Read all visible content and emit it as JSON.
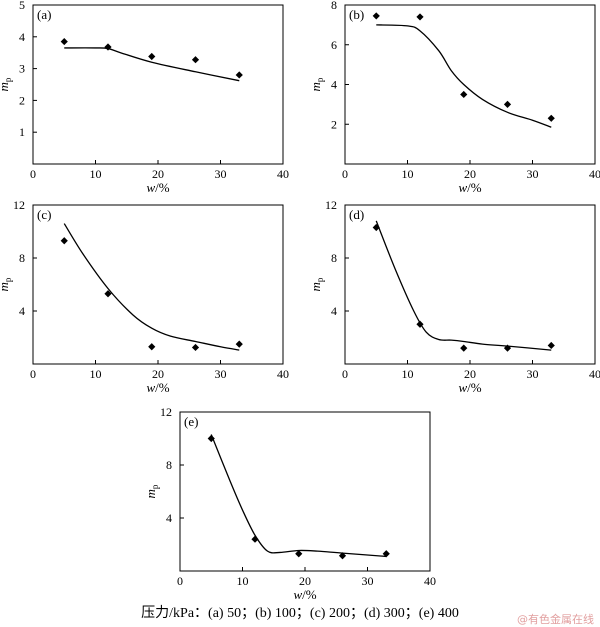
{
  "chart_data": [
    {
      "type": "scatter",
      "panel_label": "(a)",
      "xlabel": "w/%",
      "ylabel": "m_p",
      "xlim": [
        0,
        40
      ],
      "ylim": [
        0,
        5
      ],
      "xticks": [
        0,
        10,
        20,
        30,
        40
      ],
      "yticks": [
        1,
        2,
        3,
        4,
        5
      ],
      "points": [
        [
          5,
          3.85
        ],
        [
          12,
          3.68
        ],
        [
          19,
          3.38
        ],
        [
          26,
          3.28
        ],
        [
          33,
          2.8
        ]
      ],
      "curve": [
        [
          5,
          3.65
        ],
        [
          10,
          3.65
        ],
        [
          12,
          3.63
        ],
        [
          14,
          3.5
        ],
        [
          19,
          3.2
        ],
        [
          26,
          2.9
        ],
        [
          33,
          2.62
        ]
      ]
    },
    {
      "type": "scatter",
      "panel_label": "(b)",
      "xlabel": "w/%",
      "ylabel": "m_p",
      "xlim": [
        0,
        40
      ],
      "ylim": [
        0,
        8
      ],
      "xticks": [
        0,
        10,
        20,
        30,
        40
      ],
      "yticks": [
        2,
        4,
        6,
        8
      ],
      "points": [
        [
          5,
          7.45
        ],
        [
          12,
          7.4
        ],
        [
          19,
          3.5
        ],
        [
          26,
          3.0
        ],
        [
          33,
          2.3
        ]
      ],
      "curve": [
        [
          5,
          7.0
        ],
        [
          10,
          6.95
        ],
        [
          12,
          6.7
        ],
        [
          15,
          5.7
        ],
        [
          17,
          4.7
        ],
        [
          19,
          4.0
        ],
        [
          22,
          3.25
        ],
        [
          26,
          2.6
        ],
        [
          30,
          2.2
        ],
        [
          33,
          1.85
        ]
      ]
    },
    {
      "type": "scatter",
      "panel_label": "(c)",
      "xlabel": "w/%",
      "ylabel": "m_p",
      "xlim": [
        0,
        40
      ],
      "ylim": [
        0,
        12
      ],
      "xticks": [
        0,
        10,
        20,
        30,
        40
      ],
      "yticks": [
        4,
        8,
        12
      ],
      "points": [
        [
          5,
          9.3
        ],
        [
          12,
          5.3
        ],
        [
          19,
          1.3
        ],
        [
          26,
          1.25
        ],
        [
          33,
          1.5
        ]
      ],
      "curve": [
        [
          5,
          10.6
        ],
        [
          8,
          8.3
        ],
        [
          12,
          5.7
        ],
        [
          16,
          3.7
        ],
        [
          19,
          2.7
        ],
        [
          22,
          2.1
        ],
        [
          26,
          1.7
        ],
        [
          30,
          1.3
        ],
        [
          33,
          1.05
        ]
      ]
    },
    {
      "type": "scatter",
      "panel_label": "(d)",
      "xlabel": "w/%",
      "ylabel": "m_p",
      "xlim": [
        0,
        40
      ],
      "ylim": [
        0,
        12
      ],
      "xticks": [
        0,
        10,
        20,
        30,
        40
      ],
      "yticks": [
        4,
        8,
        12
      ],
      "points": [
        [
          5,
          10.3
        ],
        [
          12,
          3.0
        ],
        [
          19,
          1.2
        ],
        [
          26,
          1.2
        ],
        [
          33,
          1.4
        ]
      ],
      "curve": [
        [
          5,
          10.8
        ],
        [
          8,
          7.2
        ],
        [
          11,
          4.0
        ],
        [
          13,
          2.4
        ],
        [
          15,
          1.85
        ],
        [
          17,
          1.8
        ],
        [
          19,
          1.7
        ],
        [
          22,
          1.5
        ],
        [
          26,
          1.35
        ],
        [
          33,
          1.05
        ]
      ]
    },
    {
      "type": "scatter",
      "panel_label": "(e)",
      "xlabel": "w/%",
      "ylabel": "m_p",
      "xlim": [
        0,
        40
      ],
      "ylim": [
        0,
        12
      ],
      "xticks": [
        0,
        10,
        20,
        30,
        40
      ],
      "yticks": [
        4,
        8,
        12
      ],
      "points": [
        [
          5,
          10.0
        ],
        [
          12,
          2.4
        ],
        [
          19,
          1.3
        ],
        [
          26,
          1.15
        ],
        [
          33,
          1.3
        ]
      ],
      "curve": [
        [
          5,
          10.3
        ],
        [
          8,
          6.8
        ],
        [
          10,
          4.6
        ],
        [
          12,
          2.7
        ],
        [
          14,
          1.5
        ],
        [
          16,
          1.4
        ],
        [
          19,
          1.55
        ],
        [
          22,
          1.5
        ],
        [
          26,
          1.35
        ],
        [
          33,
          1.1
        ]
      ]
    }
  ],
  "caption": "压力/kPa：(a) 50；(b) 100；(c) 200；(d) 300；(e) 400",
  "watermark": "@有色金属在线"
}
